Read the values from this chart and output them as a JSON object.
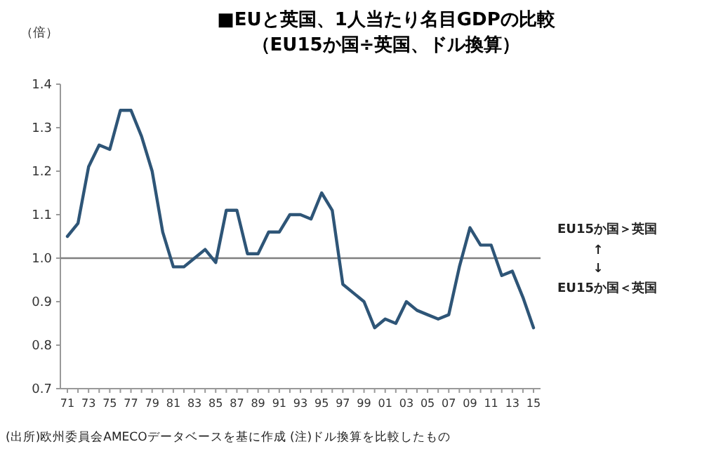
{
  "chart_data": {
    "type": "line",
    "title": "■EUと英国、1人当たり名目GDPの比較",
    "subtitle": "（EU15か国÷英国、ドル換算）",
    "ylabel": "（倍）",
    "categories": [
      "71",
      null,
      "73",
      null,
      "75",
      null,
      "77",
      null,
      "79",
      null,
      "81",
      null,
      "83",
      null,
      "85",
      null,
      "87",
      null,
      "89",
      null,
      "91",
      null,
      "93",
      null,
      "95",
      null,
      "97",
      null,
      "99",
      null,
      "01",
      null,
      "03",
      null,
      "05",
      null,
      "07",
      null,
      "09",
      null,
      "11",
      null,
      "13",
      null,
      "15"
    ],
    "series": [
      {
        "color": "#2e5577",
        "values": [
          1.05,
          1.08,
          1.21,
          1.26,
          1.25,
          1.34,
          1.34,
          1.28,
          1.2,
          1.06,
          0.98,
          0.98,
          1.0,
          1.02,
          0.99,
          1.11,
          1.11,
          1.01,
          1.01,
          1.06,
          1.06,
          1.1,
          1.1,
          1.09,
          1.15,
          1.11,
          0.94,
          0.92,
          0.9,
          0.84,
          0.86,
          0.85,
          0.9,
          0.88,
          0.87,
          0.86,
          0.87,
          0.98,
          1.07,
          1.03,
          1.03,
          0.96,
          0.97,
          0.91,
          0.84
        ]
      }
    ],
    "ylim": [
      0.7,
      1.4
    ],
    "yticks": [
      0.7,
      0.8,
      0.9,
      {
        "value": 1.0,
        "label": "1.0"
      },
      1.1,
      1.2,
      1.3,
      1.4
    ],
    "ref_lines": [
      {
        "axis": "y",
        "value": 1.0,
        "color": "#808080"
      }
    ],
    "grid": false,
    "annotations": [
      "EU15か国＞英国",
      "↑",
      "↓",
      "EU15か国＜英国",
      "(出所)欧州委員会AMECOデータベースを基に作成 (注)ドル換算を比較したもの"
    ]
  }
}
